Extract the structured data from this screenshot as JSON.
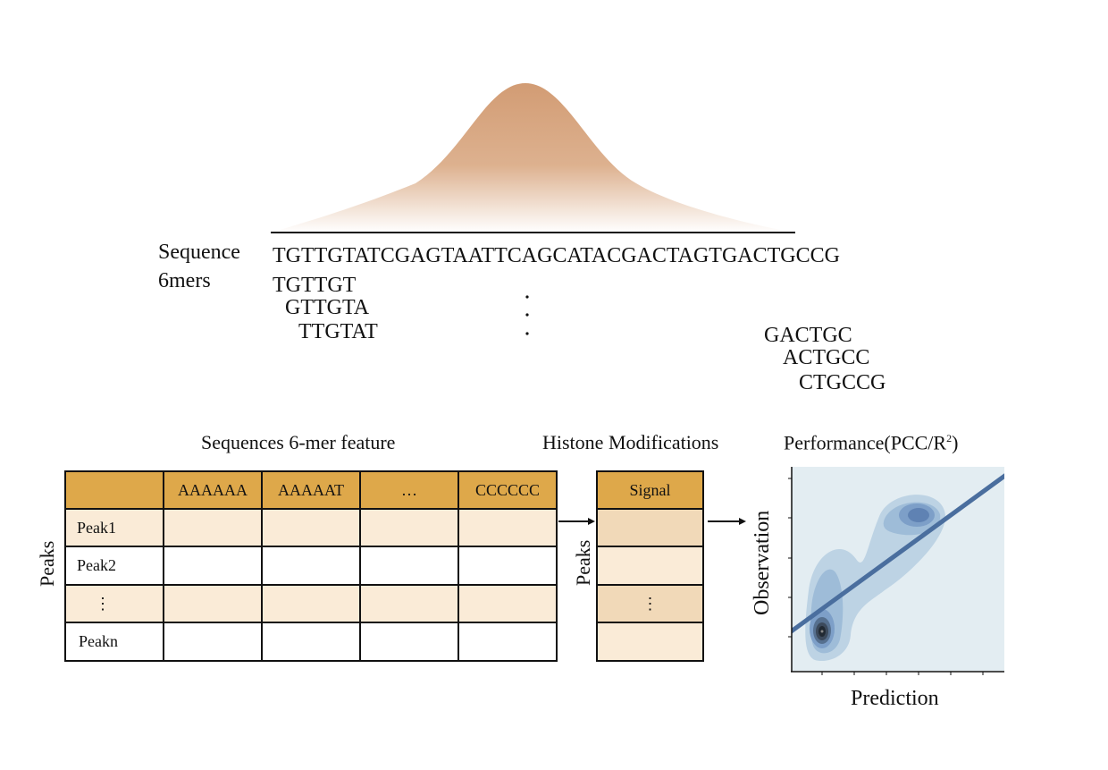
{
  "sequence_label": "Sequence",
  "kmers_label": "6mers",
  "sequence": "TGTTGTATCGAGTAATTCAGCATACGACTAGTGACTGCCG",
  "kmers_start": [
    "TGTTGT",
    "GTTGTA",
    "TTGTAT"
  ],
  "kmers_end": [
    "GACTGC",
    "ACTGCC",
    "CTGCCG"
  ],
  "feature_table": {
    "title": "Sequences 6-mer feature",
    "row_axis_label": "Peaks",
    "columns": [
      "",
      "AAAAAA",
      "AAAAAT",
      "…",
      "CCCCCC"
    ],
    "rows": [
      "Peak1",
      "Peak2",
      "⋮",
      "Peakn"
    ]
  },
  "histone_table": {
    "title": "Histone Modifications",
    "row_axis_label": "Peaks",
    "header": "Signal",
    "rows": [
      "",
      "",
      "⋮",
      ""
    ]
  },
  "performance_plot": {
    "title_main": "Performance(PCC/R",
    "title_sup": "2",
    "title_end": ")",
    "xlabel": "Prediction",
    "ylabel": "Observation"
  },
  "colors": {
    "peak_fill": "#d29c74",
    "header_fill": "#dea84a",
    "row_shade": "#faebd7",
    "plot_bg": "#e3edf2",
    "regression_line": "#4a6e9e"
  }
}
